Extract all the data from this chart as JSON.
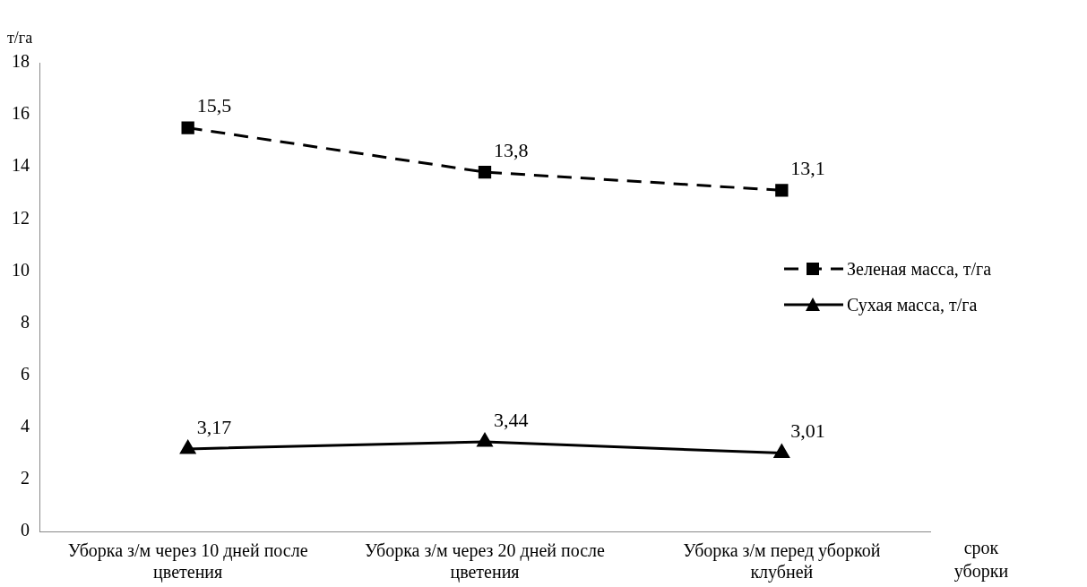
{
  "chart_data": {
    "type": "line",
    "xlabel": "срок уборки",
    "ylabel": "т/га",
    "categories": [
      "Уборка з/м через 10 дней после цветения",
      "Уборка з/м через 20 дней после цветения",
      "Уборка з/м перед уборкой клубней"
    ],
    "series": [
      {
        "name": "Зеленая масса, т/га",
        "color": "#000000",
        "values": [
          15.5,
          13.8,
          13.1
        ],
        "marker": "square",
        "line_style": "dashed",
        "value_labels": [
          "15,5",
          "13,8",
          "13,1"
        ]
      },
      {
        "name": "Сухая масса, т/га",
        "color": "#000000",
        "values": [
          3.17,
          3.44,
          3.01
        ],
        "marker": "triangle",
        "line_style": "solid",
        "value_labels": [
          "3,17",
          "3,44",
          "3,01"
        ]
      }
    ],
    "ylim": [
      0,
      18
    ],
    "yticks": [
      0,
      2,
      4,
      6,
      8,
      10,
      12,
      14,
      16,
      18
    ],
    "grid": false,
    "legend": "right"
  }
}
